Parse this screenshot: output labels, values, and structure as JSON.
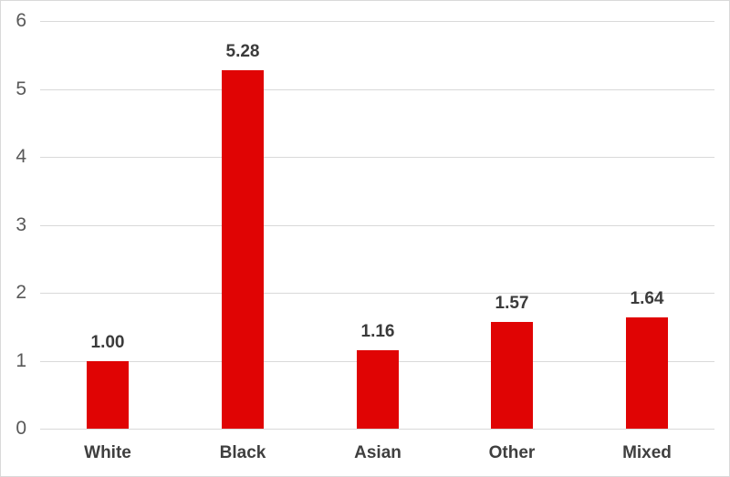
{
  "chart_data": {
    "type": "bar",
    "title": "",
    "xlabel": "",
    "ylabel": "",
    "categories": [
      "White",
      "Black",
      "Asian",
      "Other",
      "Mixed"
    ],
    "values": [
      1.0,
      5.28,
      1.16,
      1.57,
      1.64
    ],
    "value_labels": [
      "1.00",
      "5.28",
      "1.16",
      "1.57",
      "1.64"
    ],
    "ylim": [
      0,
      6
    ],
    "yticks": [
      0,
      1,
      2,
      3,
      4,
      5,
      6
    ],
    "grid": true,
    "legend": false,
    "colors": {
      "bar": "#e00404",
      "gridline": "#d9d9d9",
      "axis_line": "#d9d9d9",
      "frame_border": "#d9d9d9",
      "tick_label": "#595959",
      "data_label": "#3b3b3b",
      "category_label": "#3f3f3f",
      "background": "#ffffff"
    }
  }
}
